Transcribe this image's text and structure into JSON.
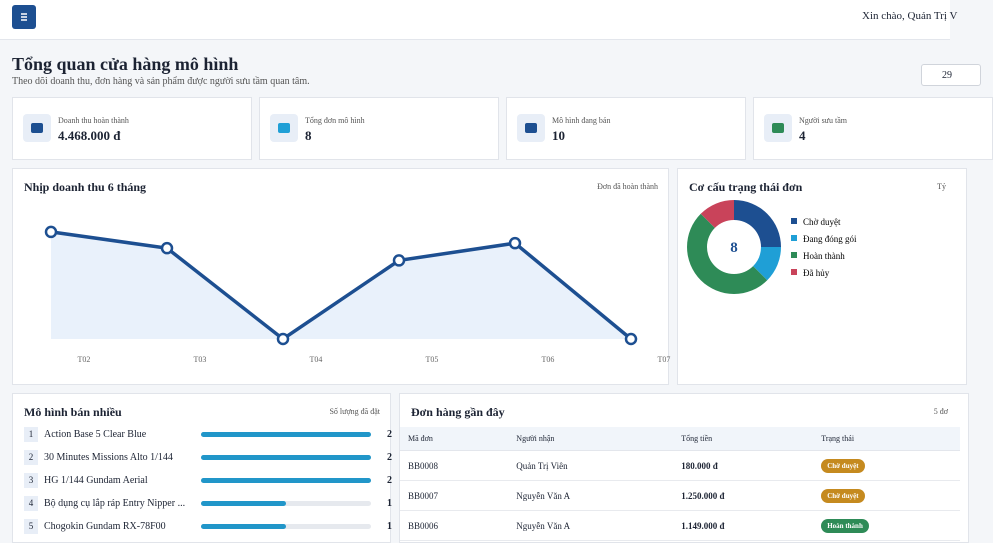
{
  "header": {
    "greeting": "Xin chào, Quản Trị V"
  },
  "page": {
    "title": "Tổng quan cửa hàng mô hình",
    "subtitle": "Theo dõi doanh thu, đơn hàng và sản phẩm được người sưu tầm quan tâm.",
    "date": "29"
  },
  "stats": [
    {
      "label": "Doanh thu hoàn thành",
      "value": "4.468.000 đ"
    },
    {
      "label": "Tổng đơn mô hình",
      "value": "8"
    },
    {
      "label": "Mô hình đang bán",
      "value": "10"
    },
    {
      "label": "Người sưu tầm",
      "value": "4"
    }
  ],
  "chart_data": [
    {
      "type": "line",
      "title": "Nhịp doanh thu 6 tháng",
      "note": "Đơn đã hoàn thành",
      "categories": [
        "T02",
        "T03",
        "T04",
        "T05",
        "T06",
        "T07"
      ],
      "values": [
        1285000,
        1090000,
        0,
        943000,
        1150000,
        0
      ],
      "color": "#1d4f91",
      "ylim": [
        0,
        1500000
      ]
    },
    {
      "type": "pie",
      "title": "Cơ cấu trạng thái đơn",
      "note": "Tỷ",
      "total": 8,
      "categories": [
        "Chờ duyệt",
        "Đang đóng gói",
        "Hoàn thành",
        "Đã hủy"
      ],
      "values": [
        2,
        1,
        4,
        1
      ],
      "colors": [
        "#1d4f91",
        "#1f9fd6",
        "#2e8b57",
        "#c9435a"
      ]
    }
  ],
  "top_products": {
    "title": "Mô hình bán nhiều",
    "note": "Số lượng đã đặt",
    "items": [
      {
        "rank": 1,
        "name": "Action Base 5 Clear Blue",
        "value": 2
      },
      {
        "rank": 2,
        "name": "30 Minutes Missions Alto 1/144",
        "value": 2
      },
      {
        "rank": 3,
        "name": "HG 1/144 Gundam Aerial",
        "value": 2
      },
      {
        "rank": 4,
        "name": "Bộ dụng cụ lắp ráp Entry Nipper ...",
        "value": 1
      },
      {
        "rank": 5,
        "name": "Chogokin Gundam RX-78F00",
        "value": 1
      }
    ]
  },
  "recent_orders": {
    "title": "Đơn hàng gần đây",
    "note": "5 đơ",
    "columns": [
      "Mã đơn",
      "Người nhận",
      "Tổng tiền",
      "Trạng thái"
    ],
    "rows": [
      [
        "BB0008",
        "Quản Trị Viên",
        "180.000 đ",
        "Chờ duyệt"
      ],
      [
        "BB0007",
        "Nguyễn Văn A",
        "1.250.000 đ",
        "Chờ duyệt"
      ],
      [
        "BB0006",
        "Nguyễn Văn A",
        "1.149.000 đ",
        "Hoàn thành"
      ]
    ]
  }
}
